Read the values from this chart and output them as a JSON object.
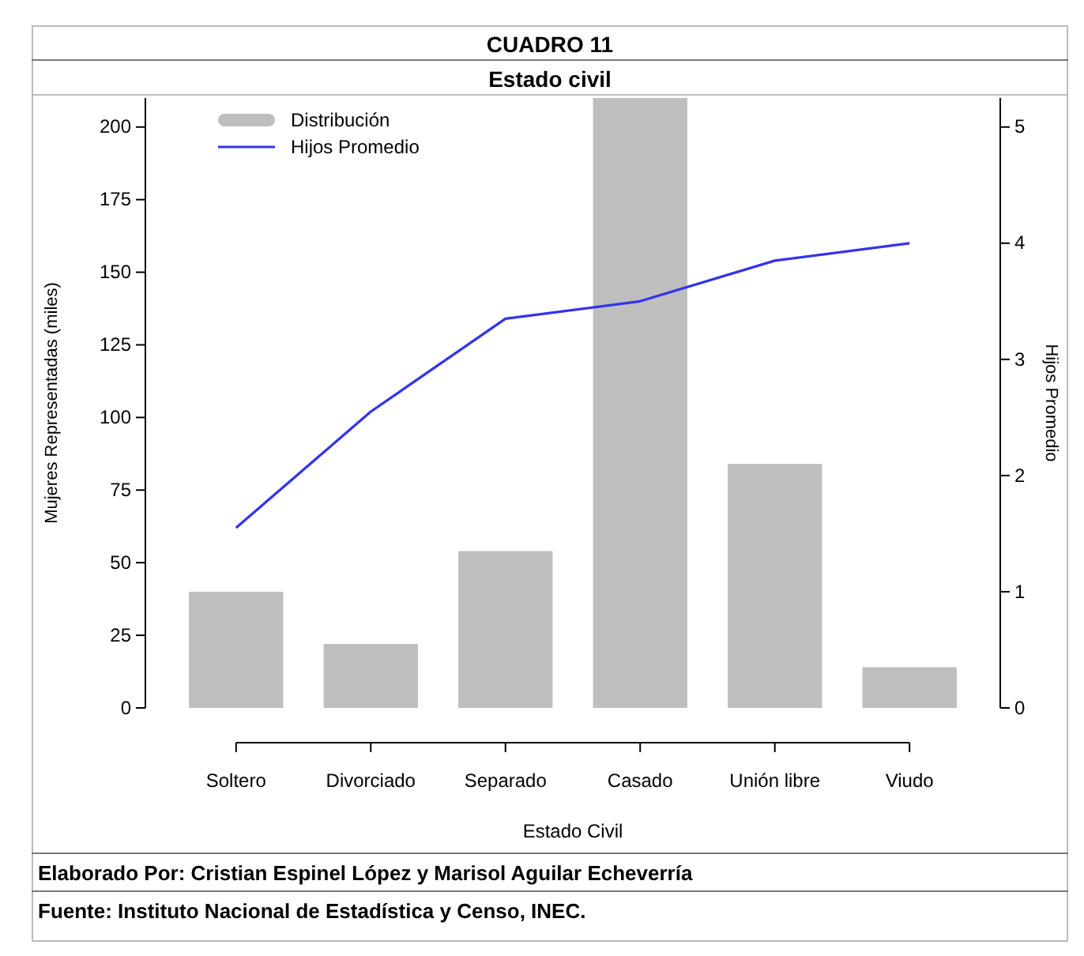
{
  "chart_data": {
    "type": "bar",
    "title": "CUADRO 11",
    "subtitle": "Estado civil",
    "xlabel": "Estado Civil",
    "ylabel": "Mujeres Representadas (miles)",
    "y2label": "Hijos Promedio",
    "categories": [
      "Soltero",
      "Divorciado",
      "Separado",
      "Casado",
      "Unión libre",
      "Viudo"
    ],
    "series": [
      {
        "name": "Distribución",
        "color": "#bebebe",
        "values": [
          40,
          22,
          54,
          210,
          84,
          14
        ]
      },
      {
        "name": "Hijos Promedio",
        "type": "line",
        "axis": "y2",
        "color": "#3333ee",
        "values": [
          1.55,
          2.55,
          3.35,
          3.5,
          3.85,
          4.0
        ]
      }
    ],
    "ylim": [
      0,
      210
    ],
    "yticks": [
      0,
      25,
      50,
      75,
      100,
      125,
      150,
      175,
      200
    ],
    "y2lim": [
      0,
      5.25
    ],
    "y2ticks": [
      0,
      1,
      2,
      3,
      4,
      5
    ],
    "legend": "top left",
    "grid": false,
    "annotations": [
      "Elaborado Por: Cristian Espinel López y Marisol Aguilar Echeverría",
      "Fuente: Instituto Nacional de Estadística y Censo, INEC."
    ]
  }
}
